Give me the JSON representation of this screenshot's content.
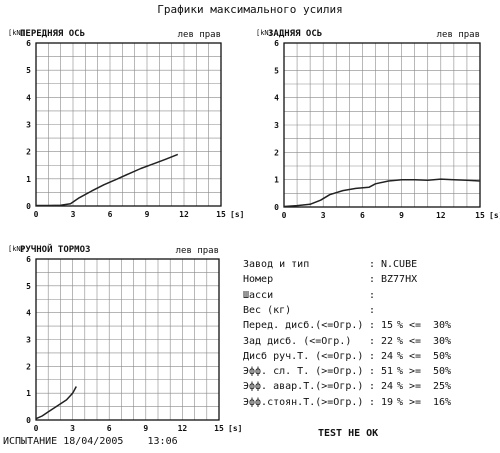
{
  "page_title": "Графики максимального усилия",
  "chart_data": [
    {
      "type": "line",
      "title": "ПЕРЕДНЯЯ ОСЬ",
      "unit_label": "[kN]",
      "side_labels": "лев прав",
      "x_unit": "[s]",
      "xlim": [
        0,
        15
      ],
      "ylim": [
        0,
        6
      ],
      "xticks": [
        0,
        3,
        6,
        9,
        12,
        15
      ],
      "yticks": [
        0,
        1,
        2,
        3,
        4,
        5,
        6
      ],
      "grid": true,
      "series": [
        {
          "x": [
            0,
            1,
            2,
            2.8,
            3.5,
            4.5,
            5.5,
            6.5,
            7.5,
            8.5,
            9.5,
            10.5,
            11.5
          ],
          "y": [
            0.02,
            0.02,
            0.03,
            0.08,
            0.3,
            0.55,
            0.78,
            0.98,
            1.18,
            1.38,
            1.55,
            1.72,
            1.9
          ]
        }
      ]
    },
    {
      "type": "line",
      "title": "ЗАДНЯЯ ОСЬ",
      "unit_label": "[kN]",
      "side_labels": "лев прав",
      "x_unit": "[s]",
      "xlim": [
        0,
        15
      ],
      "ylim": [
        0,
        6
      ],
      "xticks": [
        0,
        3,
        6,
        9,
        12,
        15
      ],
      "yticks": [
        0,
        1,
        2,
        3,
        4,
        5,
        6
      ],
      "grid": true,
      "series": [
        {
          "x": [
            0,
            1,
            2,
            2.8,
            3.5,
            4.5,
            5.5,
            6.5,
            7,
            8,
            9,
            10,
            11,
            12,
            13,
            14,
            15
          ],
          "y": [
            0.02,
            0.05,
            0.1,
            0.25,
            0.45,
            0.6,
            0.68,
            0.72,
            0.85,
            0.95,
            1.0,
            1.0,
            0.98,
            1.02,
            1.0,
            0.98,
            0.95
          ]
        }
      ]
    },
    {
      "type": "line",
      "title": "РУЧНОЙ ТОРМОЗ",
      "unit_label": "[kN]",
      "side_labels": "лев прав",
      "x_unit": "[s]",
      "xlim": [
        0,
        15
      ],
      "ylim": [
        0,
        6
      ],
      "xticks": [
        0,
        3,
        6,
        9,
        12,
        15
      ],
      "yticks": [
        0,
        1,
        2,
        3,
        4,
        5,
        6
      ],
      "grid": true,
      "series": [
        {
          "x": [
            0,
            0.5,
            1,
            1.5,
            2,
            2.5,
            3,
            3.3
          ],
          "y": [
            0.05,
            0.15,
            0.3,
            0.45,
            0.6,
            0.75,
            1.0,
            1.25
          ]
        }
      ]
    }
  ],
  "info": {
    "rows": [
      {
        "label": "Завод и тип",
        "colon": ":",
        "value": "N.CUBE",
        "op1": "",
        "op2": "",
        "value2": ""
      },
      {
        "label": "Номер",
        "colon": ":",
        "value": "BZ77HX",
        "op1": "",
        "op2": "",
        "value2": ""
      },
      {
        "label": "Шасси",
        "colon": ":",
        "value": "",
        "op1": "",
        "op2": "",
        "value2": ""
      },
      {
        "label": "Вес (кг)",
        "colon": ":",
        "value": "",
        "op1": "",
        "op2": "",
        "value2": ""
      },
      {
        "label": "Перед. дисб.(<=Огр.)",
        "colon": ":",
        "value": "15",
        "op1": "%",
        "op2": "<=",
        "value2": "30%"
      },
      {
        "label": "Зад  дисб. (<=Огр.)",
        "colon": ":",
        "value": "22",
        "op1": "%",
        "op2": "<=",
        "value2": "30%"
      },
      {
        "label": "Дисб руч.Т. (<=Огр.)",
        "colon": ":",
        "value": "24",
        "op1": "%",
        "op2": "<=",
        "value2": "50%"
      },
      {
        "label": "Эфф. сл. Т. (>=Огр.)",
        "colon": ":",
        "value": "51",
        "op1": "%",
        "op2": ">=",
        "value2": "50%"
      },
      {
        "label": "Эфф. авар.Т.(>=Огр.)",
        "colon": ":",
        "value": "24",
        "op1": "%",
        "op2": ">=",
        "value2": "25%"
      },
      {
        "label": "Эфф.стоян.Т.(>=Огр.)",
        "colon": ":",
        "value": "19",
        "op1": "%",
        "op2": ">=",
        "value2": "16%"
      }
    ]
  },
  "footer": {
    "test_label": "ИСПЫТАНИЕ 18/04/2005",
    "time": "13:06",
    "status": "TEST НЕ ОК"
  }
}
